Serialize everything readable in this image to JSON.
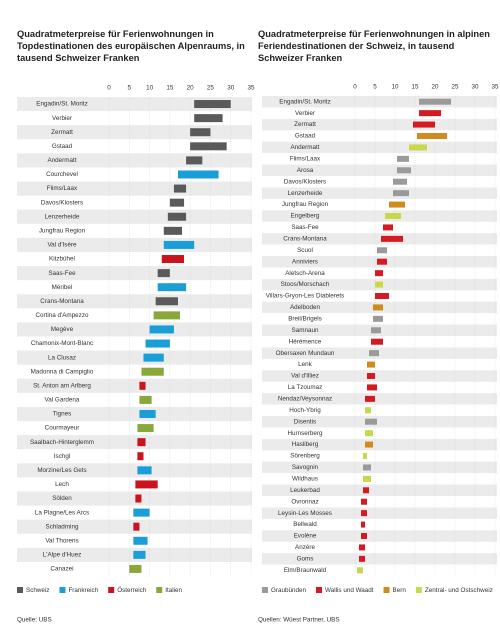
{
  "chart_data": [
    {
      "type": "range_bar",
      "title": "Quadratmeterpreise für Ferienwohnungen in Topdestinationen des europäischen Alpenraums, in tausend Schweizer Franken",
      "categories": [
        "Engadin/St. Moritz",
        "Verbier",
        "Zermatt",
        "Gstaad",
        "Andermatt",
        "Courchevel",
        "Flims/Laax",
        "Davos/Klosters",
        "Lenzerheide",
        "Jungfrau Region",
        "Val d'Isère",
        "Kitzbühel",
        "Saas-Fee",
        "Méribel",
        "Crans-Montana",
        "Cortina d'Ampezzo",
        "Megève",
        "Chamonix-Mont-Blanc",
        "La Clusaz",
        "Madonna di Campiglio",
        "St. Anton am Arlberg",
        "Val Gardena",
        "Tignes",
        "Courmayeur",
        "Saalbach-Hinterglemm",
        "Ischgl",
        "Morzine/Les Gets",
        "Lech",
        "Sölden",
        "La Plagne/Les Arcs",
        "Schladming",
        "Val Thorens",
        "L'Alpe d'Huez",
        "Canazei"
      ],
      "low": [
        21,
        21,
        20,
        20,
        19,
        17,
        16,
        15,
        14.5,
        13.5,
        13.5,
        13,
        12,
        12,
        11.5,
        11,
        10,
        9,
        8.5,
        8,
        7.5,
        7.5,
        7.5,
        7,
        7,
        7,
        7,
        6.5,
        6.5,
        6,
        6,
        6,
        6,
        5
      ],
      "high": [
        30,
        28,
        25,
        29,
        23,
        27,
        19,
        18.5,
        19,
        18,
        21,
        18.5,
        15,
        19,
        17,
        17.5,
        16,
        15,
        13.5,
        13.5,
        9,
        10.5,
        11.5,
        11,
        9,
        8.5,
        10.5,
        12,
        8,
        10,
        7.5,
        9.5,
        9,
        8
      ],
      "colors": [
        "#5a5a5a",
        "#5a5a5a",
        "#5a5a5a",
        "#5a5a5a",
        "#5a5a5a",
        "#1a9ed8",
        "#5a5a5a",
        "#5a5a5a",
        "#5a5a5a",
        "#5a5a5a",
        "#1a9ed8",
        "#c9141e",
        "#5a5a5a",
        "#1a9ed8",
        "#5a5a5a",
        "#8aa83a",
        "#1a9ed8",
        "#1a9ed8",
        "#1a9ed8",
        "#8aa83a",
        "#c9141e",
        "#8aa83a",
        "#1a9ed8",
        "#8aa83a",
        "#c9141e",
        "#c9141e",
        "#1a9ed8",
        "#c9141e",
        "#c9141e",
        "#1a9ed8",
        "#c9141e",
        "#1a9ed8",
        "#1a9ed8",
        "#8aa83a"
      ],
      "xlim": [
        0,
        35
      ],
      "xticks": [
        0,
        5,
        10,
        15,
        20,
        25,
        30,
        35
      ],
      "legend": [
        {
          "name": "Schweiz",
          "color": "#5a5a5a"
        },
        {
          "name": "Frankreich",
          "color": "#1a9ed8"
        },
        {
          "name": "Österreich",
          "color": "#c9141e"
        },
        {
          "name": "Italien",
          "color": "#8aa83a"
        }
      ],
      "source": "Quelle: UBS"
    },
    {
      "type": "range_bar",
      "title": "Quadratmeterpreise für Ferienwohnungen in alpinen Feriendestinationen der Schweiz, in tausend Schweizer Franken",
      "categories": [
        "Engadin/St. Moritz",
        "Verbier",
        "Zermatt",
        "Gstaad",
        "Andermatt",
        "Flims/Laax",
        "Arosa",
        "Davos/Klosters",
        "Lenzerheide",
        "Jungfrau Region",
        "Engelberg",
        "Saas-Fee",
        "Crans-Montana",
        "Scuol",
        "Anniviers",
        "Aletsch-Arena",
        "Stoos/Morschach",
        "Villars-Gryon-Les Diablerets",
        "Adelboden",
        "Breil/Brigels",
        "Samnaun",
        "Hérémence",
        "Obersaxen Mundaun",
        "Lenk",
        "Val d'Illiez",
        "La Tzoumaz",
        "Nendaz/Veysonnaz",
        "Hoch-Ybrig",
        "Disentis",
        "Hurnserberg",
        "Hasliberg",
        "Sörenberg",
        "Savognin",
        "Wildhaus",
        "Leukerbad",
        "Ovronnaz",
        "Leysin-Les Mosses",
        "Bellwald",
        "Evolène",
        "Anzère",
        "Goms",
        "Elm/Braunwald"
      ],
      "low": [
        16,
        16,
        14.5,
        15.5,
        13.5,
        10.5,
        10.5,
        9.5,
        9.5,
        8.5,
        7.5,
        7,
        6.5,
        5.5,
        5.5,
        5,
        5,
        5,
        4.5,
        4.5,
        4,
        4,
        3.5,
        3,
        3,
        3,
        2.5,
        2.5,
        2.5,
        2.5,
        2.5,
        2,
        2,
        2,
        2,
        1.5,
        1.5,
        1.5,
        1.5,
        1,
        1,
        0.5
      ],
      "high": [
        24,
        21.5,
        20,
        23,
        18,
        13.5,
        14,
        13,
        13.5,
        12.5,
        11.5,
        9.5,
        12,
        8,
        8,
        7,
        7,
        8.5,
        7,
        7,
        6.5,
        7,
        6,
        5,
        5,
        5.5,
        5,
        4,
        5.5,
        4.5,
        4.5,
        3,
        4,
        4,
        3.5,
        3,
        3,
        2.5,
        3,
        2.5,
        2.5,
        2
      ],
      "colors": [
        "#9a9a9a",
        "#d41a22",
        "#d41a22",
        "#d08a1e",
        "#c8d84a",
        "#9a9a9a",
        "#9a9a9a",
        "#9a9a9a",
        "#9a9a9a",
        "#d08a1e",
        "#c8d84a",
        "#d41a22",
        "#d41a22",
        "#9a9a9a",
        "#d41a22",
        "#d41a22",
        "#c8d84a",
        "#d41a22",
        "#d08a1e",
        "#9a9a9a",
        "#9a9a9a",
        "#d41a22",
        "#9a9a9a",
        "#d08a1e",
        "#d41a22",
        "#d41a22",
        "#d41a22",
        "#c8d84a",
        "#9a9a9a",
        "#c8d84a",
        "#d08a1e",
        "#c8d84a",
        "#9a9a9a",
        "#c8d84a",
        "#d41a22",
        "#d41a22",
        "#d41a22",
        "#d41a22",
        "#d41a22",
        "#d41a22",
        "#d41a22",
        "#c8d84a"
      ],
      "xlim": [
        0,
        35
      ],
      "xticks": [
        0,
        5,
        10,
        15,
        20,
        25,
        30,
        35
      ],
      "legend": [
        {
          "name": "Graubünden",
          "color": "#9a9a9a"
        },
        {
          "name": "Wallis und Waadt",
          "color": "#d41a22"
        },
        {
          "name": "Bern",
          "color": "#d08a1e"
        },
        {
          "name": "Zentral- und Ostschweiz",
          "color": "#c8d84a"
        }
      ],
      "source": "Quellen: Wüest Partner, UBS"
    }
  ]
}
